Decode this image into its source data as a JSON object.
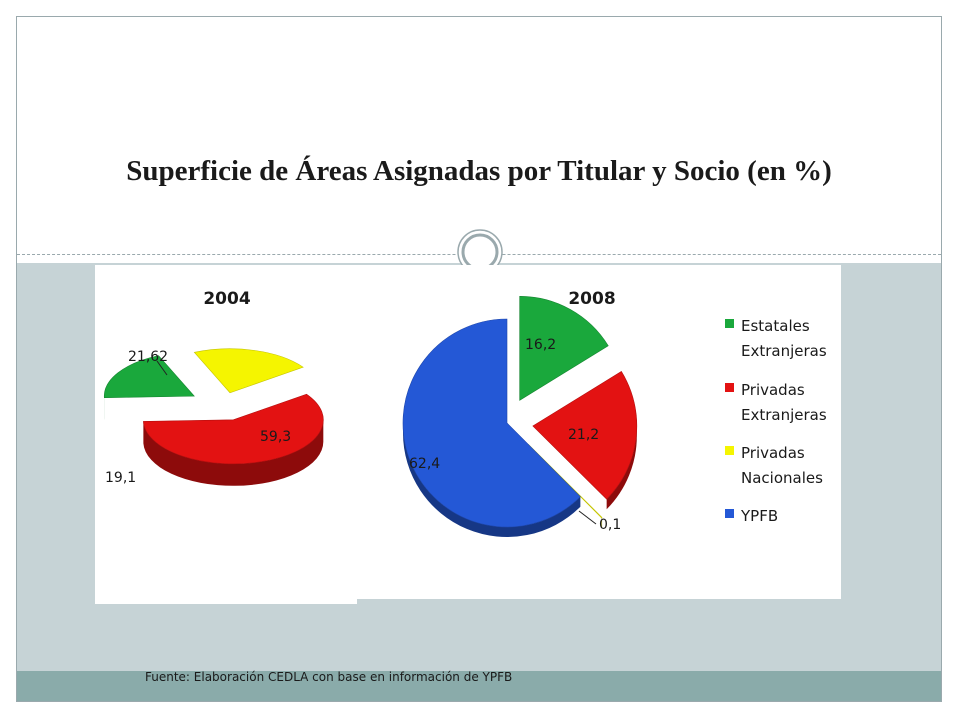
{
  "slide": {
    "title": "Superficie de Áreas Asignadas por Titular y Socio (en %)",
    "source": "Fuente: Elaboración CEDLA con base en información de YPFB"
  },
  "colors": {
    "estatales": "#1aa83c",
    "privadas_ext": "#e31212",
    "privadas_nac": "#f5f500",
    "ypfb": "#2458d6"
  },
  "legend": [
    {
      "line1": "Estatales",
      "line2": "Extranjeras",
      "color": "#1aa83c"
    },
    {
      "line1": "Privadas",
      "line2": "Extranjeras",
      "color": "#e31212"
    },
    {
      "line1": "Privadas",
      "line2": "Nacionales",
      "color": "#f5f500"
    },
    {
      "line1": "YPFB",
      "line2": "",
      "color": "#2458d6"
    }
  ],
  "chart_data": [
    {
      "type": "pie",
      "title": "2004",
      "categories": [
        "Privadas Extranjeras",
        "Estatales Extranjeras",
        "Privadas Nacionales"
      ],
      "values": [
        59.3,
        19.1,
        21.62
      ],
      "labels": [
        "59,3",
        "19,1",
        "21,62"
      ]
    },
    {
      "type": "pie",
      "title": "2008",
      "categories": [
        "Estatales Extranjeras",
        "Privadas Extranjeras",
        "Privadas Nacionales",
        "YPFB"
      ],
      "values": [
        16.2,
        21.2,
        0.1,
        62.4
      ],
      "labels": [
        "16,2",
        "21,2",
        "0,1",
        "62,4"
      ]
    }
  ]
}
